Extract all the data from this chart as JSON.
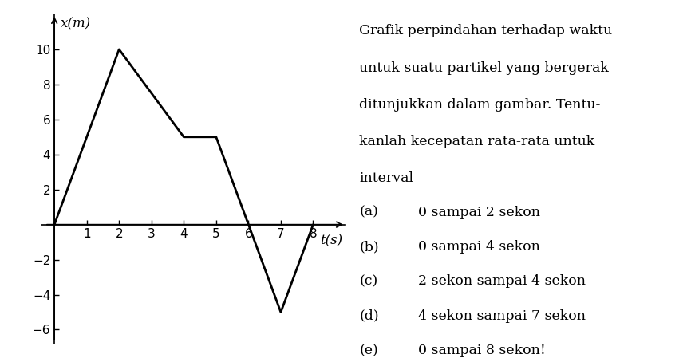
{
  "t_values": [
    0,
    2,
    4,
    5,
    6,
    7,
    8
  ],
  "x_values": [
    0,
    10,
    5,
    5,
    0,
    -5,
    0
  ],
  "xlim": [
    -0.4,
    9.0
  ],
  "ylim": [
    -6.8,
    12.0
  ],
  "x_ticks": [
    1,
    2,
    3,
    4,
    5,
    6,
    7,
    8
  ],
  "y_ticks": [
    -6,
    -4,
    -2,
    2,
    4,
    6,
    8,
    10
  ],
  "xlabel": "t(s)",
  "ylabel": "x(m)",
  "line_color": "#000000",
  "line_width": 2.0,
  "background_color": "#ffffff",
  "text_block": "Grafik perpindahan terhadap waktu\nuntuk suatu partikel yang bergerak\nditunjukkan dalam gambar. Tentu-\nkanlah kecepatan rata-rata untuk\ninterval",
  "items": [
    [
      "(a)",
      "0 sampai 2 sekon"
    ],
    [
      "(b)",
      "0 sampai 4 sekon"
    ],
    [
      "(c)",
      "2 sekon sampai 4 sekon"
    ],
    [
      "(d)",
      "4 sekon sampai 7 sekon"
    ],
    [
      "(e)",
      "0 sampai 8 sekon!"
    ]
  ],
  "font_size": 12.5
}
